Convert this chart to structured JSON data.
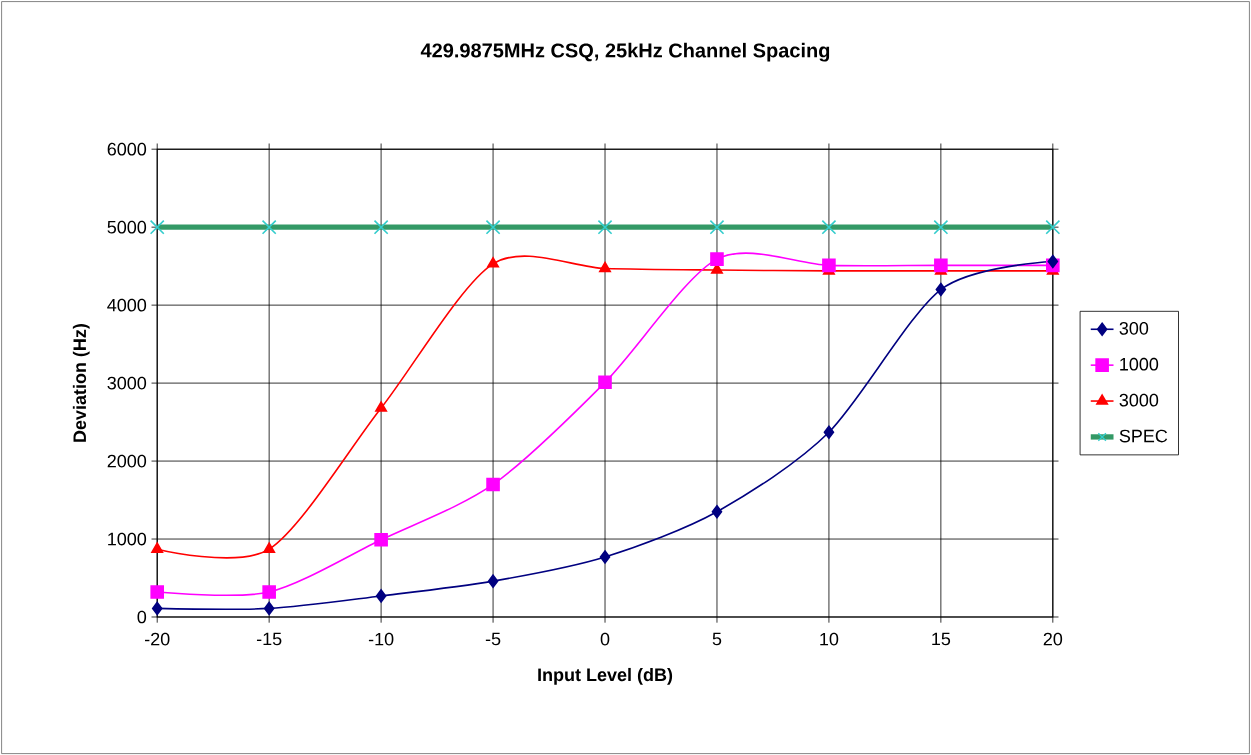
{
  "chart_data": {
    "type": "line",
    "title": "429.9875MHz CSQ, 25kHz Channel Spacing",
    "xlabel": "Input Level (dB)",
    "ylabel": "Deviation (Hz)",
    "x": [
      -20,
      -15,
      -10,
      -5,
      0,
      5,
      10,
      15,
      20
    ],
    "series": [
      {
        "name": "300",
        "color": "#000080",
        "marker": "diamond",
        "values": [
          110,
          110,
          270,
          460,
          770,
          1350,
          2370,
          4200,
          4560
        ]
      },
      {
        "name": "1000",
        "color": "#ff00ff",
        "marker": "square",
        "values": [
          320,
          320,
          990,
          1700,
          3010,
          4590,
          4510,
          4510,
          4510
        ]
      },
      {
        "name": "3000",
        "color": "#ff0000",
        "marker": "triangle",
        "values": [
          870,
          870,
          2680,
          4530,
          4470,
          4450,
          4440,
          4440,
          4440
        ]
      },
      {
        "name": "SPEC",
        "color": "#339966",
        "marker": "cross",
        "colors": [
          "#33cccc",
          "#33cccc",
          "#33cccc",
          "#33cccc",
          "#33cccc",
          "#33cccc",
          "#33cccc",
          "#33cccc",
          "#33cccc"
        ],
        "values": [
          5000,
          5000,
          5000,
          5000,
          5000,
          5000,
          5000,
          5000,
          5000
        ]
      }
    ],
    "xlim": [
      -20,
      20
    ],
    "ylim": [
      0,
      6000
    ],
    "xticks": [
      -20,
      -15,
      -10,
      -5,
      0,
      5,
      10,
      15,
      20
    ],
    "yticks": [
      0,
      1000,
      2000,
      3000,
      4000,
      5000,
      6000
    ],
    "grid": true,
    "legend": "right"
  }
}
